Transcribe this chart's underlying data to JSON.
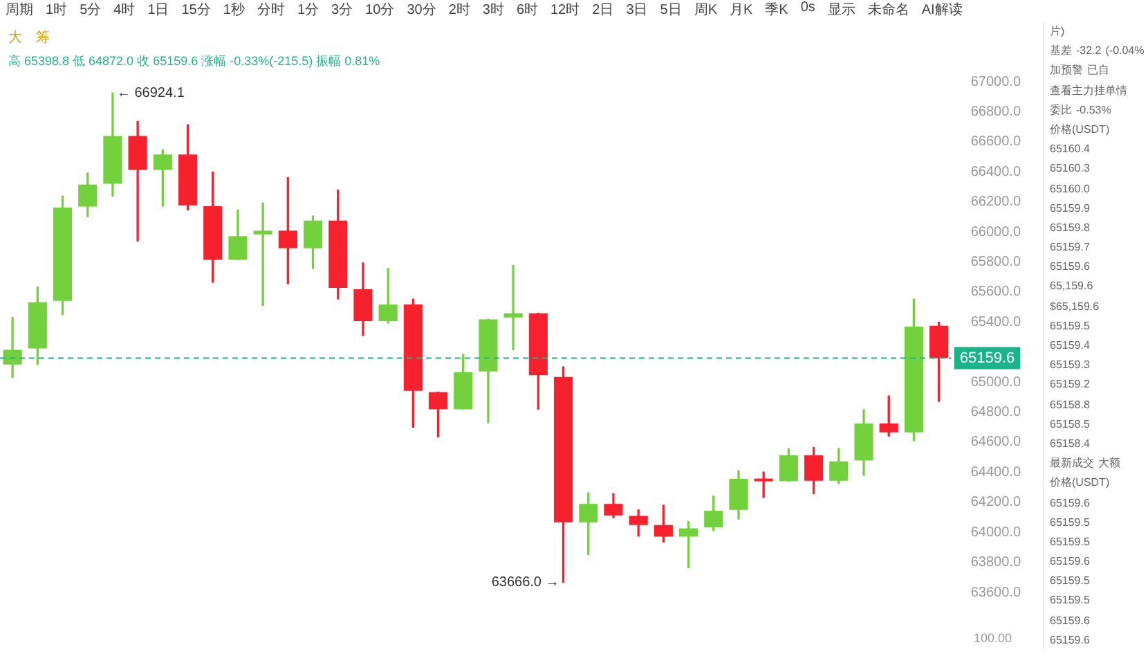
{
  "chart_data": {
    "type": "candlestick",
    "subtitle": "高 65398.8 低 64872.0 收 65159.6 涨幅 -0.33%(-215.5) 振幅 0.81%",
    "categories": [
      null,
      null,
      null,
      null,
      null,
      null,
      null,
      null,
      null,
      null,
      null,
      null,
      null,
      null,
      null,
      null,
      null,
      null,
      null,
      null,
      null,
      null,
      null,
      null,
      null,
      null,
      null,
      null,
      null,
      null,
      null,
      null,
      null,
      null,
      null,
      null,
      null,
      null
    ],
    "ohlc": [
      [
        65117,
        65430,
        65031,
        65215
      ],
      [
        65224,
        65633,
        65117,
        65532
      ],
      [
        65541,
        66238,
        65449,
        66161
      ],
      [
        66168,
        66392,
        66100,
        66315
      ],
      [
        66321,
        66924.1,
        66238,
        66638
      ],
      [
        66638,
        66736,
        65940,
        66413
      ],
      [
        66413,
        66545,
        66171,
        66515
      ],
      [
        66515,
        66714,
        66146,
        66177
      ],
      [
        66171,
        66398,
        65664,
        65814
      ],
      [
        65814,
        66146,
        65814,
        65971
      ],
      [
        65983,
        66192,
        65510,
        66008
      ],
      [
        66008,
        66361,
        65655,
        65891
      ],
      [
        65891,
        66106,
        65756,
        66075
      ],
      [
        66075,
        66278,
        65553,
        65627
      ],
      [
        65618,
        65793,
        65310,
        65406
      ],
      [
        65406,
        65756,
        65393,
        65516
      ],
      [
        65516,
        65553,
        64699,
        64942
      ],
      [
        64933,
        64933,
        64635,
        64819
      ],
      [
        64819,
        65185,
        64819,
        65065
      ],
      [
        65071,
        65418,
        64730,
        65418
      ],
      [
        65430,
        65777,
        65215,
        65458
      ],
      [
        65458,
        65458,
        64819,
        65046
      ],
      [
        65034,
        65101,
        63666.0,
        64066
      ],
      [
        64066,
        64263,
        63851,
        64189
      ],
      [
        64189,
        64257,
        64097,
        64112
      ],
      [
        64109,
        64149,
        63974,
        64048
      ],
      [
        64048,
        64180,
        63934,
        63971
      ],
      [
        63971,
        64072,
        63765,
        64026
      ],
      [
        64032,
        64241,
        64011,
        64143
      ],
      [
        64149,
        64410,
        64088,
        64355
      ],
      [
        64355,
        64401,
        64232,
        64339
      ],
      [
        64339,
        64555,
        64339,
        64512
      ],
      [
        64512,
        64564,
        64257,
        64343
      ],
      [
        64343,
        64558,
        64324,
        64472
      ],
      [
        64478,
        64816,
        64379,
        64724
      ],
      [
        64724,
        64908,
        64641,
        64665
      ],
      [
        64665,
        65553,
        64610,
        65369
      ],
      [
        65375.1,
        65398.8,
        64872.0,
        65159.6
      ]
    ],
    "colors": [
      "#73d13d",
      "#73d13d",
      "#73d13d",
      "#73d13d",
      "#73d13d",
      "#f5222d",
      "#73d13d",
      "#f5222d",
      "#f5222d",
      "#73d13d",
      "#73d13d",
      "#f5222d",
      "#73d13d",
      "#f5222d",
      "#f5222d",
      "#73d13d",
      "#f5222d",
      "#f5222d",
      "#73d13d",
      "#73d13d",
      "#73d13d",
      "#f5222d",
      "#f5222d",
      "#73d13d",
      "#f5222d",
      "#f5222d",
      "#f5222d",
      "#73d13d",
      "#73d13d",
      "#73d13d",
      "#f5222d",
      "#73d13d",
      "#f5222d",
      "#73d13d",
      "#73d13d",
      "#f5222d",
      "#73d13d",
      "#f5222d"
    ],
    "ylim": [
      63600,
      67000
    ],
    "yticks": [
      {
        "value": 63600,
        "label": "63600.0"
      },
      {
        "value": 63800,
        "label": "63800.0"
      },
      {
        "value": 64000,
        "label": "64000.0"
      },
      {
        "value": 64200,
        "label": "64200.0"
      },
      {
        "value": 64400,
        "label": "64400.0"
      },
      {
        "value": 64600,
        "label": "64600.0"
      },
      {
        "value": 64800,
        "label": "64800.0"
      },
      {
        "value": 65000,
        "label": "65000.0"
      },
      {
        "value": 65400,
        "label": "65400.0"
      },
      {
        "value": 65600,
        "label": "65600.0"
      },
      {
        "value": 65800,
        "label": "65800.0"
      },
      {
        "value": 66000,
        "label": "66000.0"
      },
      {
        "value": 66200,
        "label": "66200.0"
      },
      {
        "value": 66400,
        "label": "66400.0"
      },
      {
        "value": 66600,
        "label": "66600.0"
      },
      {
        "value": 66800,
        "label": "66800.0"
      },
      {
        "value": 67000,
        "label": "67000.0"
      }
    ],
    "ref_lines": [
      {
        "axis": "y",
        "value": 65159.6,
        "label": "65159.6",
        "color": "#1db388",
        "line_style": "dashed"
      }
    ],
    "grid": false,
    "legend": false,
    "annotations": [
      "← 66924.1",
      "63666.0 →",
      "周期 1时 5分 4时 1日 15分 1秒 分时 1分 3分 10分 30分 2时 3时 6时 12时 2日 3日 5日 周K 月K 季K 0s 显示 未命名 AI解读",
      "大 筹",
      "100.00",
      "片)",
      "基差 -32.2 (-0.04%",
      "加预警 已自",
      "查看主力挂单情",
      "委比 -0.53%",
      "价格(USDT)",
      "65160.4",
      "65160.3",
      "65160.0",
      "65159.9",
      "65159.8",
      "65159.7",
      "65159.6",
      "65,159.6",
      "$65,159.6",
      "65159.5",
      "65159.4",
      "65159.3",
      "65159.2",
      "65158.8",
      "65158.5",
      "65158.4",
      "最新成交 大额",
      "价格(USDT)",
      "65159.6",
      "65159.5",
      "65159.5",
      "65159.6",
      "65159.5",
      "65159.5",
      "65159.6",
      "65159.6"
    ]
  }
}
